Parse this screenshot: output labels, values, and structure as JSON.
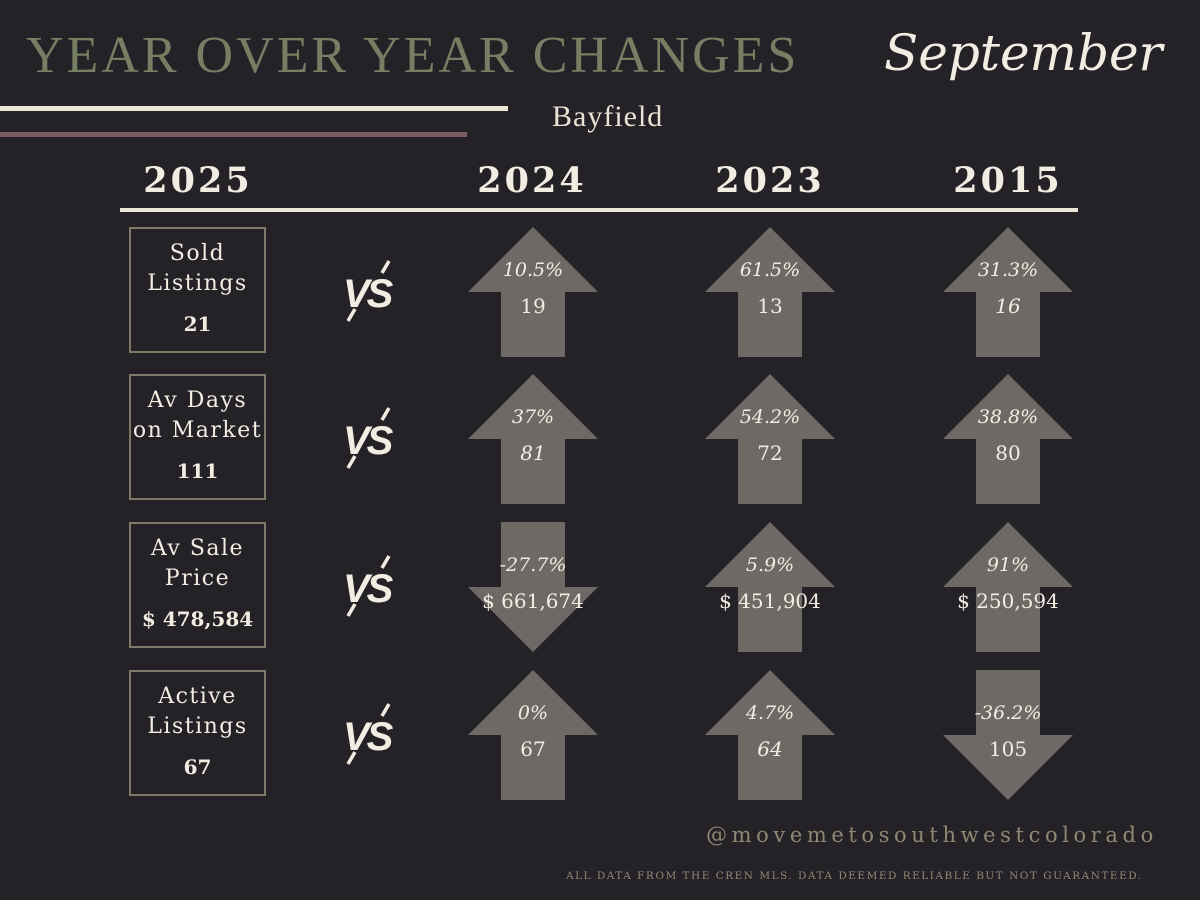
{
  "header": {
    "title": "YEAR OVER YEAR CHANGES",
    "month": "September",
    "location": "Bayfield"
  },
  "current_year": "2025",
  "compare_years": [
    "2024",
    "2023",
    "2015"
  ],
  "vs_label": "VS",
  "colors": {
    "background": "#242226",
    "title": "#767f63",
    "text": "#f1ede2",
    "arrow": "#6d6965",
    "box_border": "#7d7b67",
    "accent_rule": "#7b5c63"
  },
  "metrics": [
    {
      "label": "Sold\nListings",
      "value": "21",
      "comparisons": [
        {
          "change": "10.5%",
          "value": "19",
          "direction": "up",
          "italic_value": false
        },
        {
          "change": "61.5%",
          "value": "13",
          "direction": "up",
          "italic_value": false
        },
        {
          "change": "31.3%",
          "value": "16",
          "direction": "up",
          "italic_value": true
        }
      ]
    },
    {
      "label": "Av Days\non Market",
      "value": "111",
      "comparisons": [
        {
          "change": "37%",
          "value": "81",
          "direction": "up",
          "italic_value": true
        },
        {
          "change": "54.2%",
          "value": "72",
          "direction": "up",
          "italic_value": false
        },
        {
          "change": "38.8%",
          "value": "80",
          "direction": "up",
          "italic_value": false
        }
      ]
    },
    {
      "label": "Av Sale\nPrice",
      "value": "$ 478,584",
      "comparisons": [
        {
          "change": "-27.7%",
          "value": "$ 661,674",
          "direction": "down",
          "italic_value": false
        },
        {
          "change": "5.9%",
          "value": "$ 451,904",
          "direction": "up",
          "italic_value": false
        },
        {
          "change": "91%",
          "value": "$ 250,594",
          "direction": "up",
          "italic_value": false
        }
      ]
    },
    {
      "label": "Active\nListings",
      "value": "67",
      "comparisons": [
        {
          "change": "0%",
          "value": "67",
          "direction": "up",
          "italic_value": false
        },
        {
          "change": "4.7%",
          "value": "64",
          "direction": "up",
          "italic_value": true
        },
        {
          "change": "-36.2%",
          "value": "105",
          "direction": "down",
          "italic_value": false
        }
      ]
    }
  ],
  "footer": {
    "handle": "@movemetosouthwestcolorado",
    "disclaimer": "ALL DATA FROM THE CREN MLS. DATA DEEMED RELIABLE BUT NOT GUARANTEED."
  }
}
